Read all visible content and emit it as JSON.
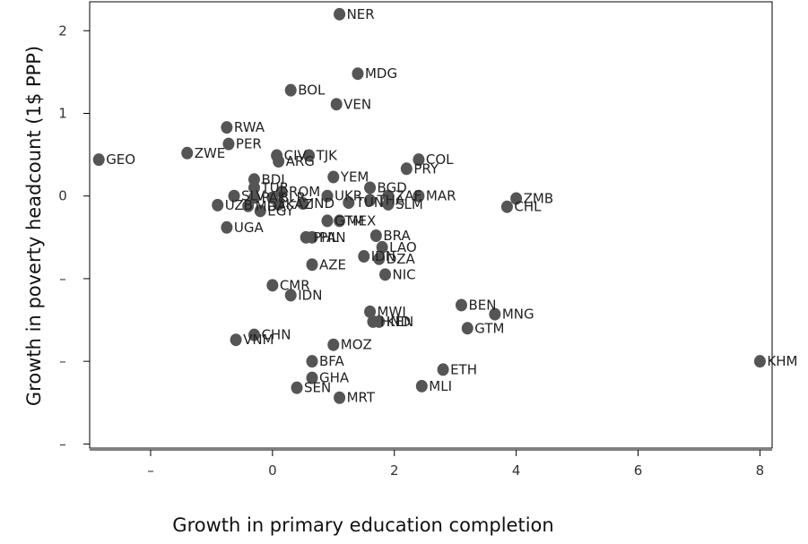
{
  "chart_data": {
    "type": "scatter",
    "title": "",
    "xlabel": "Growth in primary education completion",
    "ylabel": "Growth in poverty headcount (1$ PPP)",
    "xlim": [
      -3,
      8.2
    ],
    "ylim": [
      -3.05,
      2.35
    ],
    "x_ticks": [
      {
        "value": -2,
        "label": "–"
      },
      {
        "value": 0,
        "label": "0"
      },
      {
        "value": 2,
        "label": "2"
      },
      {
        "value": 4,
        "label": "4"
      },
      {
        "value": 6,
        "label": "6"
      },
      {
        "value": 8,
        "label": "8"
      }
    ],
    "y_ticks": [
      {
        "value": 2,
        "label": "2"
      },
      {
        "value": 1,
        "label": "1"
      },
      {
        "value": 0,
        "label": "0"
      },
      {
        "value": -1,
        "label": "–"
      },
      {
        "value": -2,
        "label": "–"
      },
      {
        "value": -3,
        "label": "–"
      }
    ],
    "grid": false,
    "legend": "none",
    "marker_color": "#555555",
    "points": [
      {
        "label": "NER",
        "x": 1.1,
        "y": 2.2
      },
      {
        "label": "MDG",
        "x": 1.4,
        "y": 1.48
      },
      {
        "label": "BOL",
        "x": 0.3,
        "y": 1.28
      },
      {
        "label": "VEN",
        "x": 1.05,
        "y": 1.11
      },
      {
        "label": "RWA",
        "x": -0.75,
        "y": 0.83
      },
      {
        "label": "PER",
        "x": -0.72,
        "y": 0.63
      },
      {
        "label": "GEO",
        "x": -2.85,
        "y": 0.44
      },
      {
        "label": "ZWE",
        "x": -1.4,
        "y": 0.52
      },
      {
        "label": "CIV",
        "x": 0.07,
        "y": 0.49
      },
      {
        "label": "TJK",
        "x": 0.6,
        "y": 0.49
      },
      {
        "label": "ARG",
        "x": 0.1,
        "y": 0.42
      },
      {
        "label": "COL",
        "x": 2.4,
        "y": 0.44
      },
      {
        "label": "PRY",
        "x": 2.2,
        "y": 0.33
      },
      {
        "label": "YEM",
        "x": 1.0,
        "y": 0.23
      },
      {
        "label": "BDI",
        "x": -0.3,
        "y": 0.2
      },
      {
        "label": "BGD",
        "x": 1.6,
        "y": 0.1
      },
      {
        "label": "TUR",
        "x": -0.3,
        "y": 0.1
      },
      {
        "label": "ROM",
        "x": 0.15,
        "y": 0.05
      },
      {
        "label": "SLV",
        "x": -0.63,
        "y": 0.0
      },
      {
        "label": "PAK",
        "x": -0.3,
        "y": -0.02
      },
      {
        "label": "BLR",
        "x": 0.0,
        "y": -0.02
      },
      {
        "label": "UKR",
        "x": 0.9,
        "y": 0.0
      },
      {
        "label": "ZAF",
        "x": 1.9,
        "y": 0.0
      },
      {
        "label": "MAR",
        "x": 2.4,
        "y": 0.0
      },
      {
        "label": "THA",
        "x": 1.6,
        "y": -0.05
      },
      {
        "label": "TUN",
        "x": 1.25,
        "y": -0.08
      },
      {
        "label": "SLM",
        "x": 1.9,
        "y": -0.1
      },
      {
        "label": "IND",
        "x": 0.5,
        "y": -0.09
      },
      {
        "label": "KAZ",
        "x": 0.1,
        "y": -0.1
      },
      {
        "label": "UZB",
        "x": -0.9,
        "y": -0.11
      },
      {
        "label": "MDA",
        "x": -0.4,
        "y": -0.12
      },
      {
        "label": "EGY",
        "x": -0.2,
        "y": -0.18
      },
      {
        "label": "ZMB",
        "x": 4.0,
        "y": -0.03
      },
      {
        "label": "CHL",
        "x": 3.85,
        "y": -0.13
      },
      {
        "label": "GTM",
        "x": 0.9,
        "y": -0.3
      },
      {
        "label": "MEX",
        "x": 1.1,
        "y": -0.3
      },
      {
        "label": "UGA",
        "x": -0.75,
        "y": -0.38
      },
      {
        "label": "BRA",
        "x": 1.7,
        "y": -0.48
      },
      {
        "label": "PHL",
        "x": 0.55,
        "y": -0.5
      },
      {
        "label": "PAN",
        "x": 0.65,
        "y": -0.5
      },
      {
        "label": "LAO",
        "x": 1.8,
        "y": -0.62
      },
      {
        "label": "IDN",
        "x": 1.5,
        "y": -0.73
      },
      {
        "label": "DZA",
        "x": 1.75,
        "y": -0.76
      },
      {
        "label": "AZE",
        "x": 0.65,
        "y": -0.83
      },
      {
        "label": "NIC",
        "x": 1.85,
        "y": -0.95
      },
      {
        "label": "CMR",
        "x": 0.0,
        "y": -1.08
      },
      {
        "label": "IDN",
        "x": 0.3,
        "y": -1.2
      },
      {
        "label": "BEN",
        "x": 3.1,
        "y": -1.32
      },
      {
        "label": "MWI",
        "x": 1.6,
        "y": -1.4
      },
      {
        "label": "MNG",
        "x": 3.65,
        "y": -1.43
      },
      {
        "label": "HND",
        "x": 1.65,
        "y": -1.52
      },
      {
        "label": "KEN",
        "x": 1.75,
        "y": -1.52
      },
      {
        "label": "GTM",
        "x": 3.2,
        "y": -1.6
      },
      {
        "label": "CHN",
        "x": -0.3,
        "y": -1.68
      },
      {
        "label": "VNM",
        "x": -0.6,
        "y": -1.74
      },
      {
        "label": "MOZ",
        "x": 1.0,
        "y": -1.8
      },
      {
        "label": "BFA",
        "x": 0.65,
        "y": -2.0
      },
      {
        "label": "ETH",
        "x": 2.8,
        "y": -2.1
      },
      {
        "label": "KHM",
        "x": 8.0,
        "y": -2.0
      },
      {
        "label": "GHA",
        "x": 0.65,
        "y": -2.2
      },
      {
        "label": "SEN",
        "x": 0.4,
        "y": -2.32
      },
      {
        "label": "MLI",
        "x": 2.45,
        "y": -2.3
      },
      {
        "label": "MRT",
        "x": 1.1,
        "y": -2.44
      }
    ]
  }
}
